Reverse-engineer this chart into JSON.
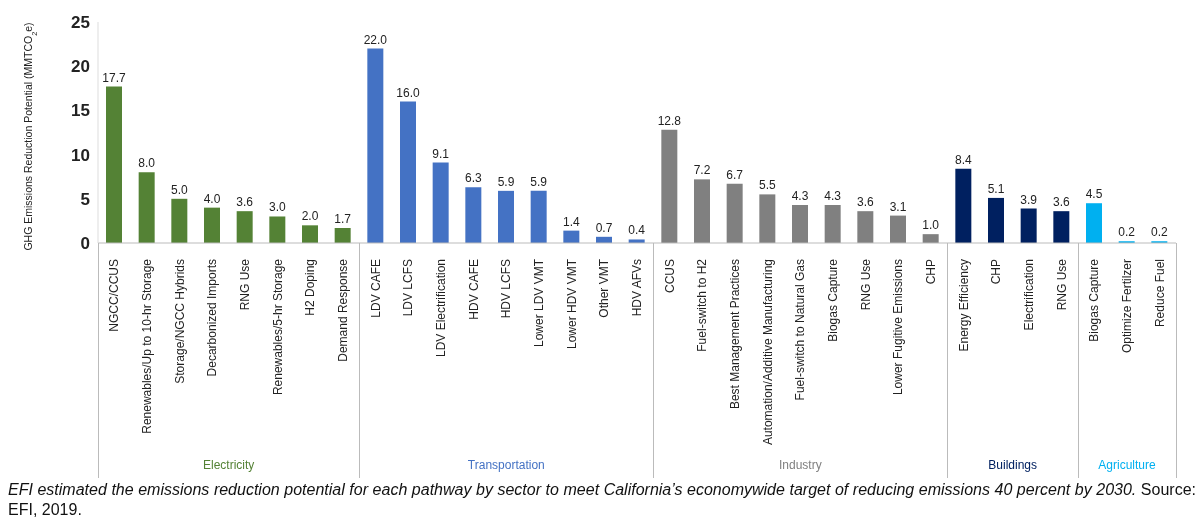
{
  "chart_data": {
    "type": "bar",
    "ylabel": "GHG Emissions Reduction Potential (MMTCO$_{2}$e)",
    "categories": [
      "NGCC/CCUS",
      "Renewables/Up to 10-hr Storage",
      "Storage/NGCC Hybrids",
      "Decarbonized Imports",
      "RNG Use",
      "Renewables/5-hr Storage",
      "H2 Doping",
      "Demand Response",
      "LDV CAFE",
      "LDV LCFS",
      "LDV Electrification",
      "HDV CAFE",
      "HDV LCFS",
      "Lower LDV VMT",
      "Lower HDV VMT",
      "Other VMT",
      "HDV AFVs",
      "CCUS",
      "Fuel-switch to H2",
      "Best Management Practices",
      "Automation/Additive Manufacturing",
      "Fuel-switch to Natural Gas",
      "Biogas Capture",
      "RNG Use",
      "Lower Fugitive Emissions",
      "CHP",
      "Energy Efficiency",
      "CHP",
      "Electrification",
      "RNG Use",
      "Biogas Capture",
      "Optimize Fertilzer",
      "Reduce Fuel"
    ],
    "series": [
      {
        "name": "Electricity",
        "color": "#548235",
        "values": [
          17.7,
          8.0,
          5.0,
          4.0,
          3.6,
          3.0,
          2.0,
          1.7,
          null,
          null,
          null,
          null,
          null,
          null,
          null,
          null,
          null,
          null,
          null,
          null,
          null,
          null,
          null,
          null,
          null,
          null,
          null,
          null,
          null,
          null,
          null,
          null,
          null
        ],
        "value_labels": [
          "17.7",
          "8.0",
          "5.0",
          "4.0",
          "3.6",
          "3.0",
          "2.0",
          "1.7",
          null,
          null,
          null,
          null,
          null,
          null,
          null,
          null,
          null,
          null,
          null,
          null,
          null,
          null,
          null,
          null,
          null,
          null,
          null,
          null,
          null,
          null,
          null,
          null,
          null
        ]
      },
      {
        "name": "Transportation",
        "color": "#4472c4",
        "values": [
          null,
          null,
          null,
          null,
          null,
          null,
          null,
          null,
          22.0,
          16.0,
          9.1,
          6.3,
          5.9,
          5.9,
          1.4,
          0.7,
          0.4,
          null,
          null,
          null,
          null,
          null,
          null,
          null,
          null,
          null,
          null,
          null,
          null,
          null,
          null,
          null,
          null
        ],
        "value_labels": [
          null,
          null,
          null,
          null,
          null,
          null,
          null,
          null,
          "22.0",
          "16.0",
          "9.1",
          "6.3",
          "5.9",
          "5.9",
          "1.4",
          "0.7",
          "0.4",
          null,
          null,
          null,
          null,
          null,
          null,
          null,
          null,
          null,
          null,
          null,
          null,
          null,
          null,
          null,
          null
        ]
      },
      {
        "name": "Industry",
        "color": "#808080",
        "values": [
          null,
          null,
          null,
          null,
          null,
          null,
          null,
          null,
          null,
          null,
          null,
          null,
          null,
          null,
          null,
          null,
          null,
          12.8,
          7.2,
          6.7,
          5.5,
          4.3,
          4.3,
          3.6,
          3.1,
          1.0,
          null,
          null,
          null,
          null,
          null,
          null,
          null
        ],
        "value_labels": [
          null,
          null,
          null,
          null,
          null,
          null,
          null,
          null,
          null,
          null,
          null,
          null,
          null,
          null,
          null,
          null,
          null,
          "12.8",
          "7.2",
          "6.7",
          "5.5",
          "4.3",
          "4.3",
          "3.6",
          "3.1",
          "1.0",
          null,
          null,
          null,
          null,
          null,
          null,
          null
        ]
      },
      {
        "name": "Buildings",
        "color": "#002060",
        "values": [
          null,
          null,
          null,
          null,
          null,
          null,
          null,
          null,
          null,
          null,
          null,
          null,
          null,
          null,
          null,
          null,
          null,
          null,
          null,
          null,
          null,
          null,
          null,
          null,
          null,
          null,
          8.4,
          5.1,
          3.9,
          3.6,
          null,
          null,
          null
        ],
        "value_labels": [
          null,
          null,
          null,
          null,
          null,
          null,
          null,
          null,
          null,
          null,
          null,
          null,
          null,
          null,
          null,
          null,
          null,
          null,
          null,
          null,
          null,
          null,
          null,
          null,
          null,
          null,
          "8.4",
          "5.1",
          "3.9",
          "3.6",
          null,
          null,
          null
        ]
      },
      {
        "name": "Agriculture",
        "color": "#00b0f0",
        "values": [
          null,
          null,
          null,
          null,
          null,
          null,
          null,
          null,
          null,
          null,
          null,
          null,
          null,
          null,
          null,
          null,
          null,
          null,
          null,
          null,
          null,
          null,
          null,
          null,
          null,
          null,
          null,
          null,
          null,
          null,
          4.5,
          0.2,
          0.2
        ],
        "value_labels": [
          null,
          null,
          null,
          null,
          null,
          null,
          null,
          null,
          null,
          null,
          null,
          null,
          null,
          null,
          null,
          null,
          null,
          null,
          null,
          null,
          null,
          null,
          null,
          null,
          null,
          null,
          null,
          null,
          null,
          null,
          "4.5",
          "0.2",
          "0.2"
        ]
      }
    ],
    "ylim": [
      0,
      25
    ],
    "yticks": [
      0,
      5,
      10,
      15,
      20,
      25
    ],
    "grid": false,
    "legend": false,
    "annotations": [
      "EFI estimated the emissions reduction potential for each pathway by sector to meet California’s economywide target of reducing emissions 40 percent by 2030.",
      "Source: EFI, 2019."
    ]
  }
}
